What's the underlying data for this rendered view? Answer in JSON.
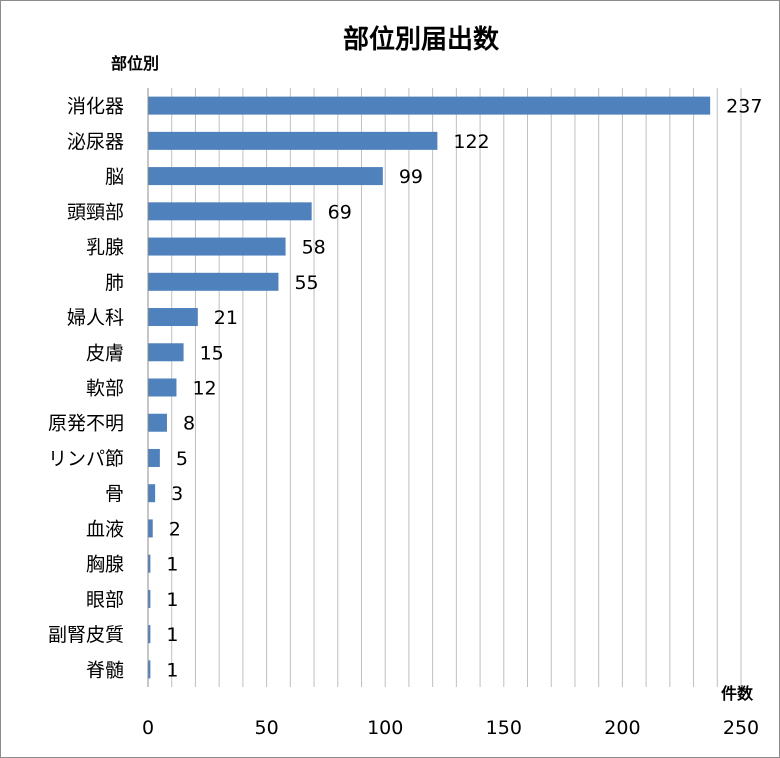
{
  "chart_data": {
    "type": "bar",
    "orientation": "horizontal",
    "title": "部位別届出数",
    "ylabel": "部位別",
    "xlabel": "件数",
    "categories": [
      "消化器",
      "泌尿器",
      "脳",
      "頭頸部",
      "乳腺",
      "肺",
      "婦人科",
      "皮膚",
      "軟部",
      "原発不明",
      "リンパ節",
      "骨",
      "血液",
      "胸腺",
      "眼部",
      "副腎皮質",
      "脊髄"
    ],
    "values": [
      237,
      122,
      99,
      69,
      58,
      55,
      21,
      15,
      12,
      8,
      5,
      3,
      2,
      1,
      1,
      1,
      1
    ],
    "xlim": [
      0,
      250
    ],
    "xticks": [
      0,
      50,
      100,
      150,
      200,
      250
    ],
    "grid": true,
    "data_labels": true,
    "bar_color": "#4f81bd",
    "grid_color": "#bfbfbf",
    "legend": "none"
  }
}
